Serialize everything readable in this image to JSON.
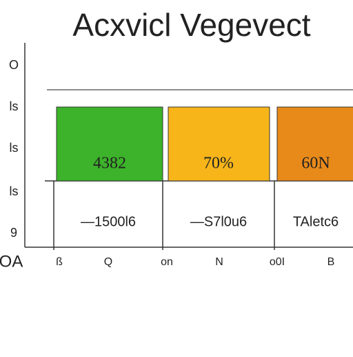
{
  "header": {
    "title": "Acxvicl Vegevect"
  },
  "y_labels": [
    "O",
    "ls",
    "ls",
    "ls",
    "9"
  ],
  "corner_label": "OA",
  "boxes": [
    {
      "label": "4382"
    },
    {
      "label": "70%"
    },
    {
      "label": "60N"
    }
  ],
  "row": [
    "—1500l6",
    "—S7l0u6",
    "TAletc6"
  ],
  "x_labels": [
    "ß",
    "Q",
    "on",
    "N",
    "o0I",
    "B"
  ]
}
